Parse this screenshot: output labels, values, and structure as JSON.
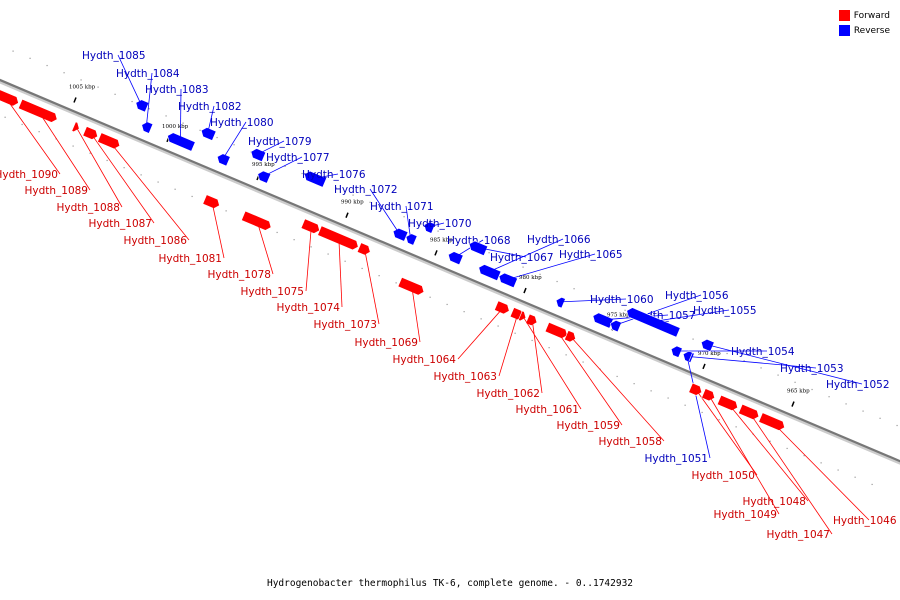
{
  "legend": [
    {
      "label": "Forward",
      "color": "#ff0000"
    },
    {
      "label": "Reverse",
      "color": "#0000ff"
    }
  ],
  "caption": "Hydrogenobacter thermophilus TK-6, complete genome. - 0..1742932",
  "colors": {
    "forward": "#ff0000",
    "reverse": "#0000ff",
    "forward_label": "#cc0000",
    "reverse_label": "#0000bb",
    "axis": "#777777"
  },
  "kbp_ticks": [
    {
      "pos": 1005,
      "label": "1005 kbp"
    },
    {
      "pos": 1000,
      "label": "1000 kbp"
    },
    {
      "pos": 995,
      "label": "995 kbp"
    },
    {
      "pos": 990,
      "label": "990 kbp"
    },
    {
      "pos": 985,
      "label": "985 kbp"
    },
    {
      "pos": 980,
      "label": "980 kbp"
    },
    {
      "pos": 975,
      "label": "975 kbp"
    },
    {
      "pos": 970,
      "label": "970 kbp"
    },
    {
      "pos": 965,
      "label": "965 kbp"
    }
  ],
  "genes": [
    {
      "name": "Hydth_1090",
      "strand": "forward"
    },
    {
      "name": "Hydth_1089",
      "strand": "forward"
    },
    {
      "name": "Hydth_1088",
      "strand": "forward"
    },
    {
      "name": "Hydth_1087",
      "strand": "forward"
    },
    {
      "name": "Hydth_1086",
      "strand": "forward"
    },
    {
      "name": "Hydth_1085",
      "strand": "reverse"
    },
    {
      "name": "Hydth_1084",
      "strand": "reverse"
    },
    {
      "name": "Hydth_1083",
      "strand": "reverse"
    },
    {
      "name": "Hydth_1082",
      "strand": "reverse"
    },
    {
      "name": "Hydth_1081",
      "strand": "forward"
    },
    {
      "name": "Hydth_1080",
      "strand": "reverse"
    },
    {
      "name": "Hydth_1079",
      "strand": "reverse"
    },
    {
      "name": "Hydth_1078",
      "strand": "forward"
    },
    {
      "name": "Hydth_1077",
      "strand": "reverse"
    },
    {
      "name": "Hydth_1076",
      "strand": "reverse"
    },
    {
      "name": "Hydth_1075",
      "strand": "forward"
    },
    {
      "name": "Hydth_1074",
      "strand": "forward"
    },
    {
      "name": "Hydth_1073",
      "strand": "forward"
    },
    {
      "name": "Hydth_1072",
      "strand": "reverse"
    },
    {
      "name": "Hydth_1071",
      "strand": "reverse"
    },
    {
      "name": "Hydth_1070",
      "strand": "reverse"
    },
    {
      "name": "Hydth_1069",
      "strand": "forward"
    },
    {
      "name": "Hydth_1068",
      "strand": "reverse"
    },
    {
      "name": "Hydth_1067",
      "strand": "reverse"
    },
    {
      "name": "Hydth_1066",
      "strand": "reverse"
    },
    {
      "name": "Hydth_1065",
      "strand": "reverse"
    },
    {
      "name": "Hydth_1064",
      "strand": "forward"
    },
    {
      "name": "Hydth_1063",
      "strand": "forward"
    },
    {
      "name": "Hydth_1062",
      "strand": "forward"
    },
    {
      "name": "Hydth_1061",
      "strand": "forward"
    },
    {
      "name": "Hydth_1060",
      "strand": "reverse"
    },
    {
      "name": "Hydth_1059",
      "strand": "forward"
    },
    {
      "name": "Hydth_1058",
      "strand": "forward"
    },
    {
      "name": "Hydth_1057",
      "strand": "reverse"
    },
    {
      "name": "Hydth_1056",
      "strand": "reverse"
    },
    {
      "name": "Hydth_1055",
      "strand": "reverse"
    },
    {
      "name": "Hydth_1054",
      "strand": "reverse"
    },
    {
      "name": "Hydth_1053",
      "strand": "reverse"
    },
    {
      "name": "Hydth_1052",
      "strand": "reverse"
    },
    {
      "name": "Hydth_1051",
      "strand": "reverse"
    },
    {
      "name": "Hydth_1050",
      "strand": "forward"
    },
    {
      "name": "Hydth_1049",
      "strand": "forward"
    },
    {
      "name": "Hydth_1048",
      "strand": "forward"
    },
    {
      "name": "Hydth_1047",
      "strand": "forward"
    },
    {
      "name": "Hydth_1046",
      "strand": "forward"
    }
  ]
}
